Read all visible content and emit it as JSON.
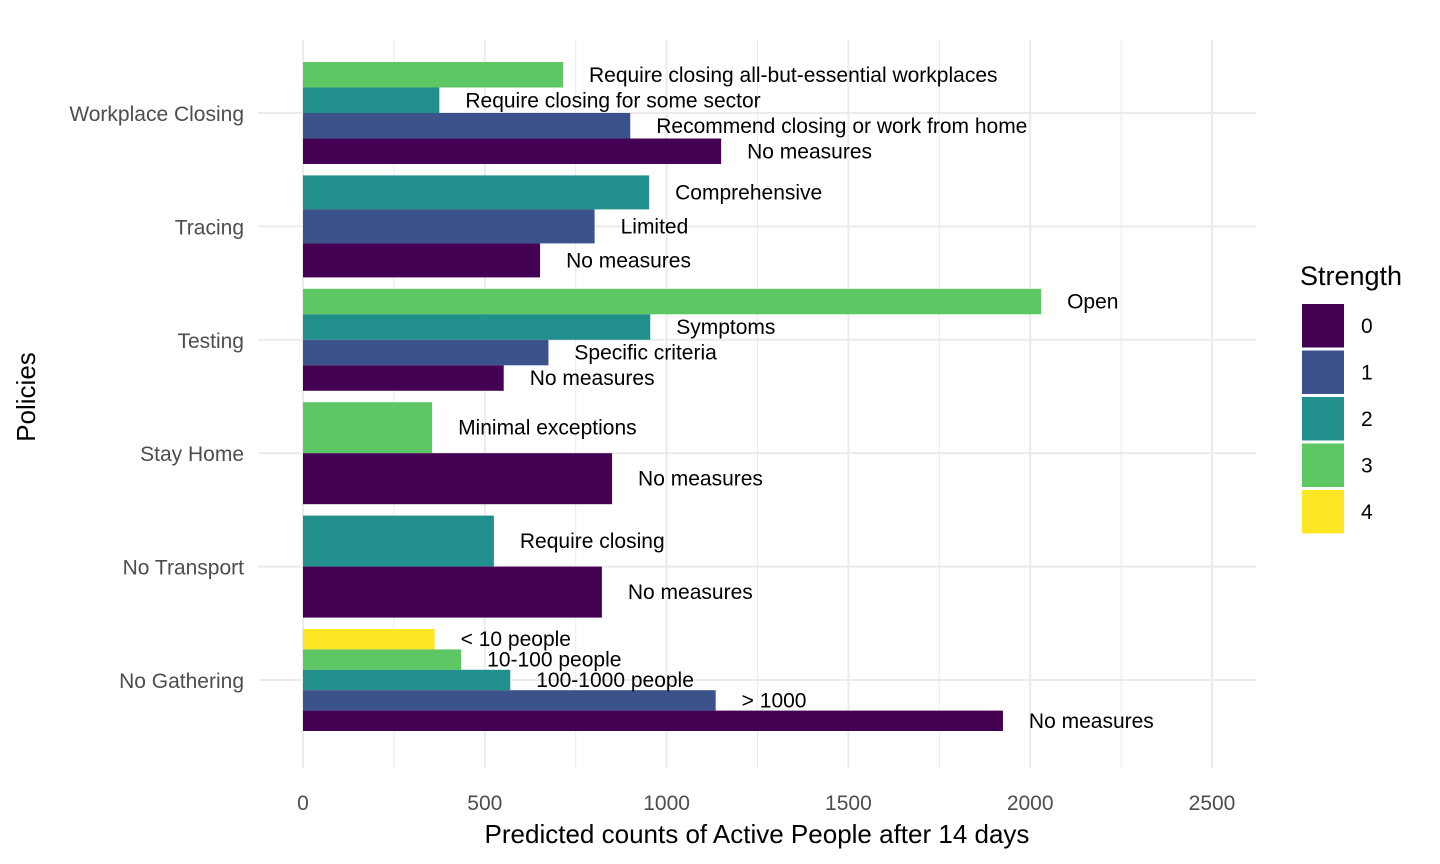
{
  "chart_data": {
    "type": "bar",
    "orientation": "horizontal",
    "xlabel": "Predicted counts of Active People after 14 days",
    "ylabel": "Policies",
    "xlim": [
      0,
      2600
    ],
    "xticks": [
      0,
      500,
      1000,
      1500,
      2000,
      2500
    ],
    "grid": true,
    "legend": {
      "title": "Strength",
      "placement": "right",
      "levels": [
        "0",
        "1",
        "2",
        "3",
        "4"
      ]
    },
    "colors": {
      "0": "#440154",
      "1": "#3B528B",
      "2": "#21908C",
      "3": "#5DC863",
      "4": "#FDE725"
    },
    "categories": [
      "Workplace Closing",
      "Tracing",
      "Testing",
      "Stay Home",
      "No Transport",
      "No Gathering"
    ],
    "groups": [
      {
        "category": "Workplace Closing",
        "bars": [
          {
            "strength": "3",
            "value": 715,
            "label": "Require closing all-but-essential workplaces"
          },
          {
            "strength": "2",
            "value": 375,
            "label": "Require closing for some sector"
          },
          {
            "strength": "1",
            "value": 900,
            "label": "Recommend closing or work from home"
          },
          {
            "strength": "0",
            "value": 1150,
            "label": "No measures"
          }
        ]
      },
      {
        "category": "Tracing",
        "bars": [
          {
            "strength": "2",
            "value": 952,
            "label": "Comprehensive"
          },
          {
            "strength": "1",
            "value": 802,
            "label": "Limited"
          },
          {
            "strength": "0",
            "value": 652,
            "label": "No measures"
          }
        ]
      },
      {
        "category": "Testing",
        "bars": [
          {
            "strength": "3",
            "value": 2030,
            "label": "Open"
          },
          {
            "strength": "2",
            "value": 955,
            "label": "Symptoms"
          },
          {
            "strength": "1",
            "value": 675,
            "label": "Specific criteria"
          },
          {
            "strength": "0",
            "value": 552,
            "label": "No measures"
          }
        ]
      },
      {
        "category": "Stay Home",
        "bars": [
          {
            "strength": "3",
            "value": 355,
            "label": "Minimal exceptions"
          },
          {
            "strength": "0",
            "value": 850,
            "label": "No measures"
          }
        ]
      },
      {
        "category": "No Transport",
        "bars": [
          {
            "strength": "2",
            "value": 525,
            "label": "Require closing"
          },
          {
            "strength": "0",
            "value": 822,
            "label": "No measures"
          }
        ]
      },
      {
        "category": "No Gathering",
        "bars": [
          {
            "strength": "4",
            "value": 362,
            "label": "< 10 people"
          },
          {
            "strength": "3",
            "value": 435,
            "label": "10-100 people"
          },
          {
            "strength": "2",
            "value": 570,
            "label": "100-1000 people"
          },
          {
            "strength": "1",
            "value": 1135,
            "label": "> 1000"
          },
          {
            "strength": "0",
            "value": 1925,
            "label": "No measures"
          }
        ]
      }
    ]
  }
}
